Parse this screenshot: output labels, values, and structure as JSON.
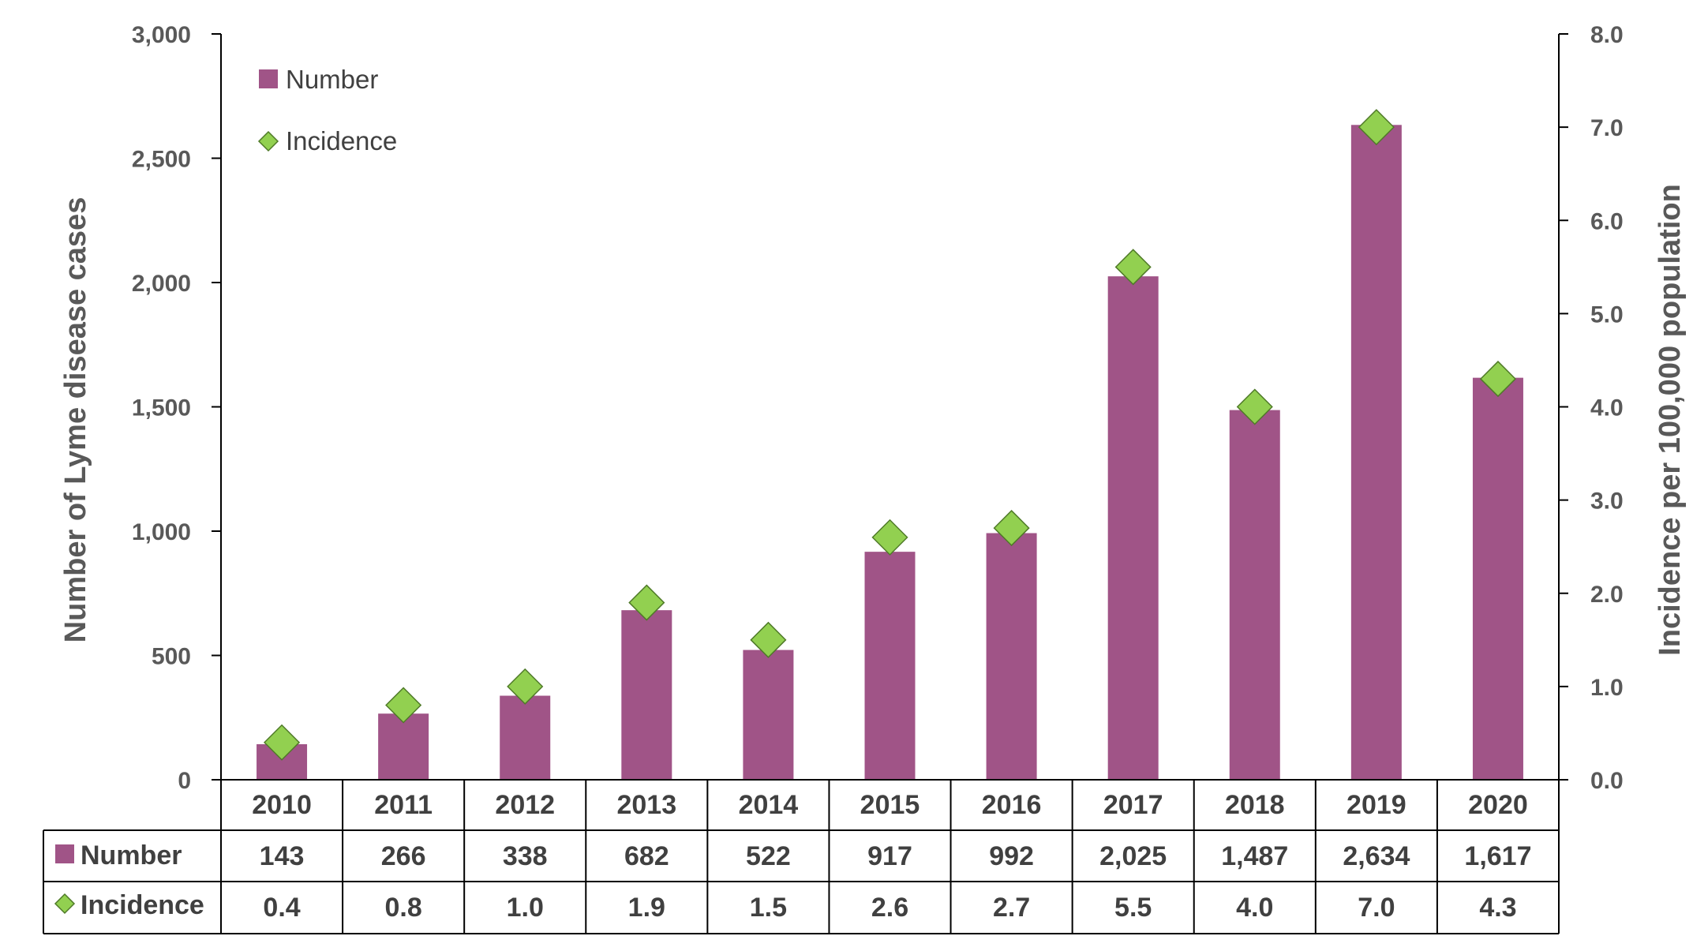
{
  "chart_data": {
    "type": "bar",
    "categories": [
      "2010",
      "2011",
      "2012",
      "2013",
      "2014",
      "2015",
      "2016",
      "2017",
      "2018",
      "2019",
      "2020"
    ],
    "series": [
      {
        "name": "Number",
        "type": "bar",
        "axis": "left",
        "color": "#A05487",
        "values": [
          143,
          266,
          338,
          682,
          522,
          917,
          992,
          2025,
          1487,
          2634,
          1617
        ],
        "labels": [
          "143",
          "266",
          "338",
          "682",
          "522",
          "917",
          "992",
          "2,025",
          "1,487",
          "2,634",
          "1,617"
        ]
      },
      {
        "name": "Incidence",
        "type": "marker-diamond",
        "axis": "right",
        "color": "#92D050",
        "values": [
          0.4,
          0.8,
          1.0,
          1.9,
          1.5,
          2.6,
          2.7,
          5.5,
          4.0,
          7.0,
          4.3
        ],
        "labels": [
          "0.4",
          "0.8",
          "1.0",
          "1.9",
          "1.5",
          "2.6",
          "2.7",
          "5.5",
          "4.0",
          "7.0",
          "4.3"
        ]
      }
    ],
    "ylabel": "Number of Lyme disease cases",
    "y2label": "Incidence per 100,000 population",
    "ylim": [
      0,
      3000
    ],
    "y2lim": [
      0,
      8
    ],
    "yticks": [
      0,
      500,
      1000,
      1500,
      2000,
      2500,
      3000
    ],
    "ytick_labels": [
      "0",
      "500",
      "1,000",
      "1,500",
      "2,000",
      "2,500",
      "3,000"
    ],
    "y2ticks": [
      0,
      1,
      2,
      3,
      4,
      5,
      6,
      7,
      8
    ],
    "y2tick_labels": [
      "0.0",
      "1.0",
      "2.0",
      "3.0",
      "4.0",
      "5.0",
      "6.0",
      "7.0",
      "8.0"
    ],
    "legend": {
      "position": "top-left",
      "items": [
        "Number",
        "Incidence"
      ]
    },
    "data_table": true,
    "grid": false
  }
}
